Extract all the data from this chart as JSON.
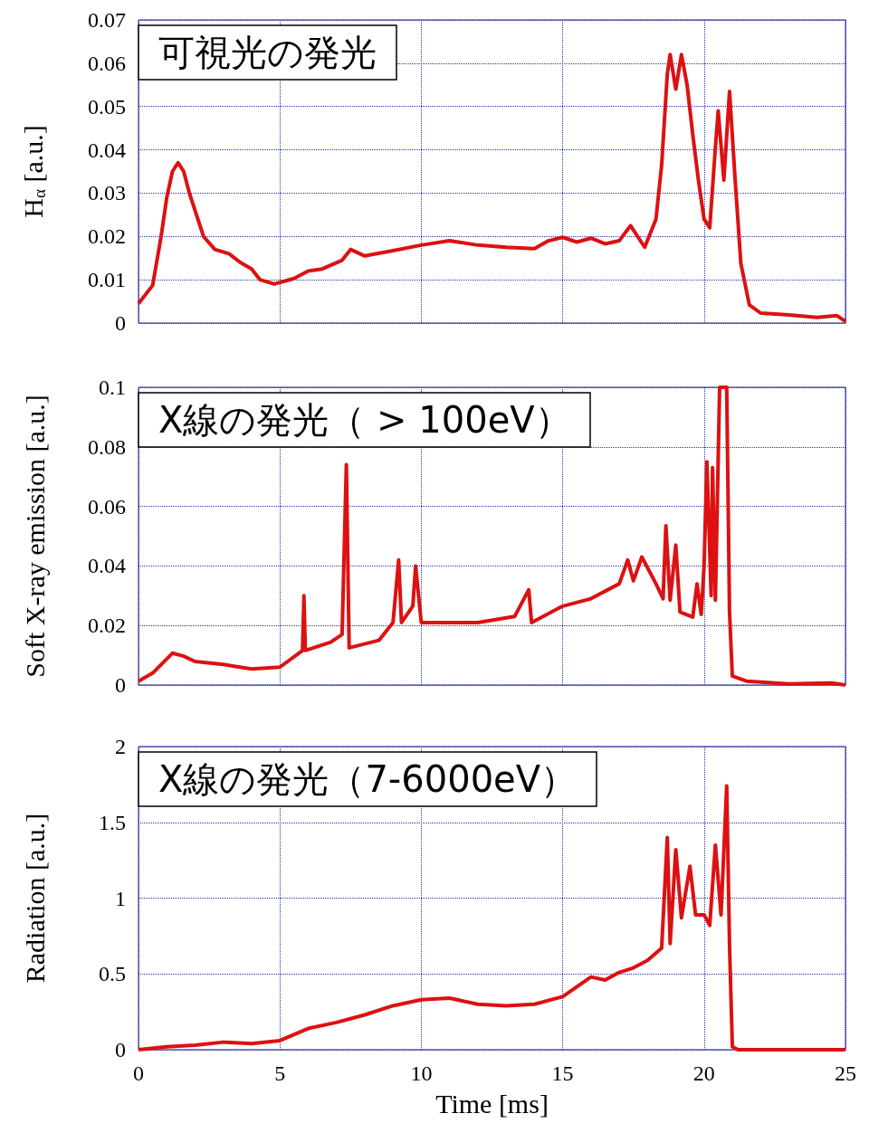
{
  "chart_data": [
    {
      "type": "line",
      "title": "可視光の発光",
      "ylabel": "H$_{α}$ [a.u.]",
      "color": "#dd1111",
      "grid": true,
      "tick_labels": "y",
      "xlim": [
        0,
        25
      ],
      "xticks": [
        0,
        5,
        10,
        15,
        20,
        25
      ],
      "ylim": [
        0,
        0.07
      ],
      "yticks": [
        0,
        0.01,
        0.02,
        0.03,
        0.04,
        0.05,
        0.06,
        0.07
      ],
      "x": [
        0,
        0.5,
        0.8,
        1.0,
        1.2,
        1.4,
        1.6,
        1.8,
        2.0,
        2.3,
        2.7,
        3.2,
        3.6,
        4.0,
        4.3,
        4.8,
        5.5,
        6.0,
        6.5,
        7.2,
        7.5,
        8.0,
        9.0,
        10,
        11,
        12,
        13,
        14,
        14.5,
        15,
        15.5,
        16,
        16.5,
        17,
        17.4,
        17.9,
        18.3,
        18.5,
        18.7,
        18.8,
        19.0,
        19.2,
        19.4,
        19.6,
        19.8,
        20.0,
        20.2,
        20.4,
        20.5,
        20.7,
        20.9,
        21.1,
        21.3,
        21.6,
        22,
        23,
        24,
        24.7,
        25
      ],
      "values": [
        0.0045,
        0.0087,
        0.02,
        0.029,
        0.035,
        0.037,
        0.035,
        0.03,
        0.026,
        0.02,
        0.017,
        0.016,
        0.014,
        0.0125,
        0.01,
        0.009,
        0.0103,
        0.012,
        0.0125,
        0.0145,
        0.017,
        0.0155,
        0.0167,
        0.018,
        0.019,
        0.018,
        0.0175,
        0.0172,
        0.019,
        0.0198,
        0.0187,
        0.0196,
        0.0183,
        0.019,
        0.0225,
        0.0175,
        0.024,
        0.0365,
        0.0575,
        0.062,
        0.054,
        0.062,
        0.055,
        0.0435,
        0.033,
        0.024,
        0.022,
        0.0405,
        0.049,
        0.033,
        0.0535,
        0.033,
        0.0138,
        0.0042,
        0.0023,
        0.0019,
        0.0013,
        0.0017,
        0.0004
      ]
    },
    {
      "type": "line",
      "title": "X線の発光（ > 100eV）",
      "ylabel": "Soft X-ray emission [a.u.]",
      "color": "#dd1111",
      "grid": true,
      "tick_labels": "y",
      "xlim": [
        0,
        25
      ],
      "xticks": [
        0,
        5,
        10,
        15,
        20,
        25
      ],
      "ylim": [
        0,
        0.1
      ],
      "yticks": [
        0,
        0.02,
        0.04,
        0.06,
        0.08,
        0.1
      ],
      "x": [
        0,
        0.5,
        1,
        1.2,
        1.6,
        2,
        3,
        4,
        5,
        5.8,
        5.85,
        5.9,
        6.8,
        7.2,
        7.35,
        7.45,
        8.5,
        9,
        9.2,
        9.3,
        9.7,
        9.8,
        10,
        11,
        12,
        13.3,
        13.8,
        13.9,
        15,
        16,
        17,
        17.3,
        17.5,
        17.8,
        18.3,
        18.55,
        18.65,
        18.8,
        19.0,
        19.15,
        19.6,
        19.75,
        19.9,
        20.0,
        20.1,
        20.25,
        20.3,
        20.4,
        20.55,
        20.8,
        20.9,
        21.0,
        21.5,
        23,
        24.5,
        25
      ],
      "values": [
        0.0013,
        0.004,
        0.0088,
        0.0107,
        0.0097,
        0.0079,
        0.0069,
        0.0054,
        0.006,
        0.0116,
        0.03,
        0.0116,
        0.0144,
        0.017,
        0.074,
        0.0125,
        0.015,
        0.021,
        0.042,
        0.021,
        0.0265,
        0.04,
        0.021,
        0.021,
        0.021,
        0.023,
        0.032,
        0.021,
        0.0265,
        0.029,
        0.034,
        0.042,
        0.035,
        0.043,
        0.034,
        0.029,
        0.0535,
        0.0285,
        0.047,
        0.0245,
        0.0228,
        0.034,
        0.0237,
        0.04,
        0.075,
        0.03,
        0.073,
        0.0285,
        0.1,
        0.1,
        0.0245,
        0.003,
        0.0013,
        0.0004,
        0.0007,
        0
      ]
    },
    {
      "type": "line",
      "title": "X線の発光（7-6000eV）",
      "xlabel": "Time [ms]",
      "ylabel": "Radiation [a.u.]",
      "color": "#dd1111",
      "grid": true,
      "xlim": [
        0,
        25
      ],
      "xticks": [
        0,
        5,
        10,
        15,
        20,
        25
      ],
      "ylim": [
        0,
        2
      ],
      "yticks": [
        0,
        0.5,
        1,
        1.5,
        2
      ],
      "x": [
        0,
        1,
        2,
        3,
        4,
        5,
        6,
        7,
        8,
        9,
        10,
        11,
        12,
        13,
        14,
        15,
        16,
        16.5,
        17,
        17.5,
        18,
        18.5,
        18.7,
        18.8,
        19.0,
        19.2,
        19.5,
        19.7,
        20,
        20.2,
        20.4,
        20.6,
        20.8,
        20.9,
        21.0,
        21.2,
        25
      ],
      "values": [
        0,
        0.02,
        0.03,
        0.05,
        0.04,
        0.06,
        0.14,
        0.18,
        0.23,
        0.29,
        0.33,
        0.34,
        0.3,
        0.29,
        0.3,
        0.35,
        0.48,
        0.46,
        0.51,
        0.54,
        0.59,
        0.67,
        1.4,
        0.7,
        1.32,
        0.87,
        1.21,
        0.89,
        0.89,
        0.82,
        1.35,
        0.89,
        1.74,
        0.69,
        0.02,
        0,
        0
      ]
    }
  ]
}
